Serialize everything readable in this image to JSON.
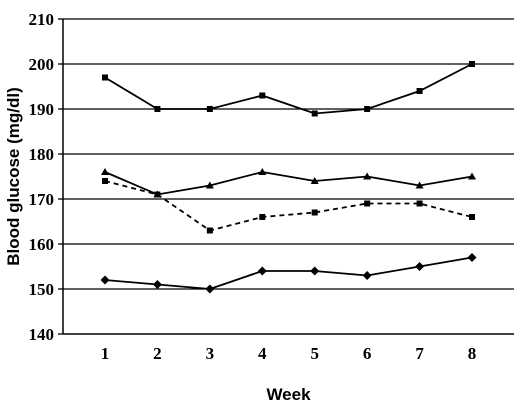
{
  "chart_data": {
    "type": "line",
    "title": "",
    "xlabel": "Week",
    "ylabel": "Blood glucose (mg/dl)",
    "x": [
      1,
      2,
      3,
      4,
      5,
      6,
      7,
      8
    ],
    "x_tick_labels": [
      "1",
      "2",
      "3",
      "4",
      "5",
      "6",
      "7",
      "8"
    ],
    "ylim": [
      140,
      210
    ],
    "y_ticks": [
      140,
      150,
      160,
      170,
      180,
      190,
      200,
      210
    ],
    "y_tick_labels": [
      "140",
      "150",
      "160",
      "170",
      "180",
      "190",
      "200",
      "210"
    ],
    "grid": "horizontal",
    "legend": "none",
    "series": [
      {
        "marker": "square",
        "line_style": "solid",
        "color": "#000000",
        "values": [
          197,
          190,
          190,
          193,
          189,
          190,
          194,
          200
        ]
      },
      {
        "marker": "triangle",
        "line_style": "solid",
        "color": "#000000",
        "values": [
          176,
          171,
          173,
          176,
          174,
          175,
          173,
          175
        ]
      },
      {
        "marker": "square",
        "line_style": "dashed",
        "color": "#000000",
        "values": [
          174,
          171,
          163,
          166,
          167,
          169,
          169,
          166
        ]
      },
      {
        "marker": "diamond",
        "line_style": "solid",
        "color": "#000000",
        "values": [
          152,
          151,
          150,
          154,
          154,
          153,
          155,
          157
        ]
      }
    ]
  }
}
